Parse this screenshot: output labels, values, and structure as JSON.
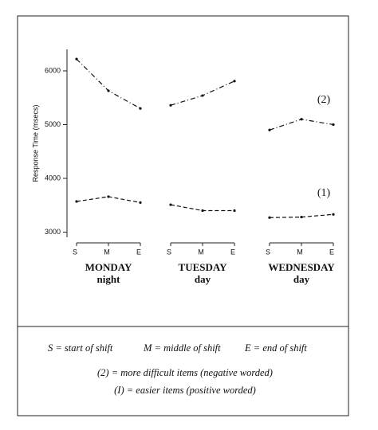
{
  "chart_data": {
    "type": "line",
    "ylabel": "Response Time (msecs)",
    "categories": [
      "S",
      "M",
      "E",
      "S",
      "M",
      "E",
      "S",
      "M",
      "E"
    ],
    "groups": [
      {
        "name": "MONDAY",
        "sub": "night"
      },
      {
        "name": "TUESDAY",
        "sub": "day"
      },
      {
        "name": "WEDNESDAY",
        "sub": "day"
      }
    ],
    "series": [
      {
        "name": "(2)",
        "color": "#111111",
        "dash": "dash-dot",
        "values": [
          6220,
          5630,
          5300,
          5360,
          5540,
          5810,
          4900,
          5100,
          5000
        ]
      },
      {
        "name": "(1)",
        "color": "#111111",
        "dash": "dashed",
        "values": [
          3570,
          3660,
          3550,
          3510,
          3400,
          3400,
          3270,
          3280,
          3330
        ]
      }
    ],
    "ylim": [
      2800,
      6400
    ],
    "yticks": [
      3000,
      4000,
      5000,
      6000
    ],
    "notes": {
      "shift": [
        "S = start of shift",
        "M = middle of shift",
        "E = end of shift"
      ],
      "difficult": "(2) =  more difficult items (negative worded)",
      "easier": "(I) =  easier items (positive worded)"
    }
  }
}
